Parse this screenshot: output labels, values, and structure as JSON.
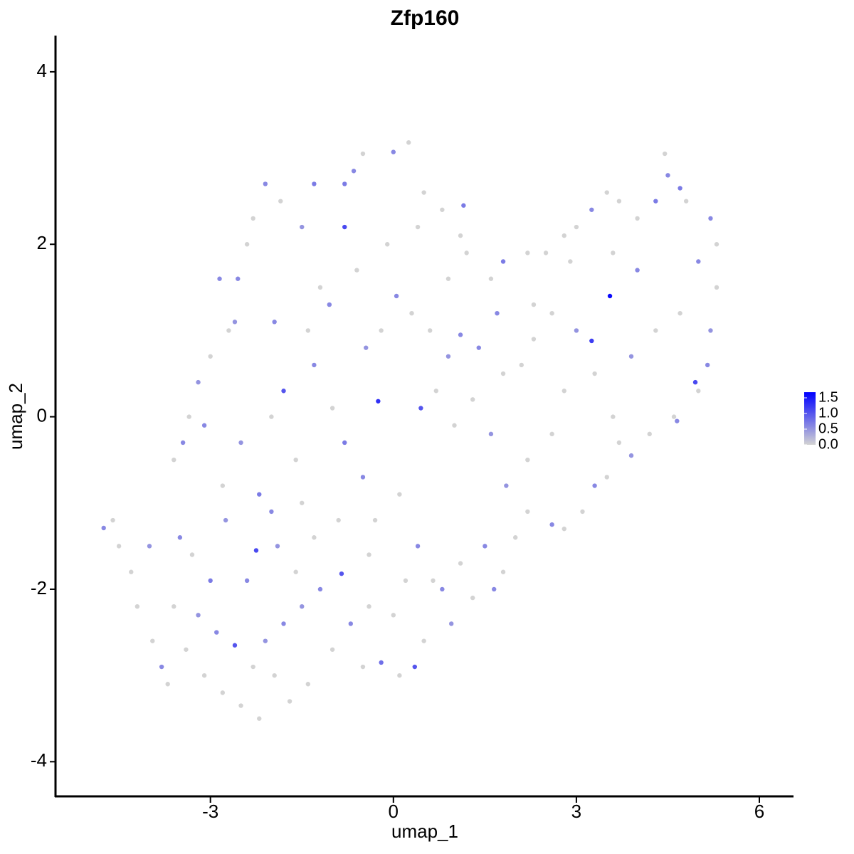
{
  "chart_data": {
    "type": "scatter",
    "title": "Zfp160",
    "x_label": "umap_1",
    "y_label": "umap_2",
    "xlim": [
      -5.54,
      6.56
    ],
    "ylim": [
      -4.41,
      4.42
    ],
    "xticks": [
      -3,
      0,
      3,
      6
    ],
    "yticks": [
      -4,
      -2,
      0,
      2,
      4
    ],
    "colorbar": {
      "range": [
        0,
        1.68
      ],
      "low": "#d3d3d3",
      "high": "#0000ff",
      "ticks": [
        {
          "value": 0,
          "label": "0.0"
        },
        {
          "value": 0.5,
          "label": "0.5"
        },
        {
          "value": 1,
          "label": "1.0"
        },
        {
          "value": 1.5,
          "label": "1.5"
        }
      ]
    },
    "x": [
      -4.75,
      -4.6,
      -4.5,
      -4.3,
      -4.2,
      -4.0,
      -3.95,
      -3.8,
      -3.7,
      -3.6,
      -3.5,
      -3.4,
      -3.3,
      -3.2,
      -3.1,
      -3.0,
      -2.9,
      -2.8,
      -2.75,
      -2.6,
      -2.5,
      -2.4,
      -2.3,
      -2.25,
      -2.2,
      -2.1,
      -2.0,
      -1.95,
      -1.8,
      -1.7,
      -1.6,
      -1.5,
      -1.4,
      -1.3,
      -1.2,
      -1.0,
      -0.85,
      -0.7,
      -0.5,
      -0.4,
      -0.2,
      0.0,
      0.1,
      0.35,
      0.5,
      0.65,
      0.8,
      0.95,
      1.1,
      1.3,
      1.5,
      1.65,
      1.8,
      2.0,
      2.2,
      2.6,
      2.8,
      3.1,
      3.3,
      3.5,
      3.7,
      3.9,
      4.2,
      4.6,
      4.65,
      5.0,
      4.95,
      5.15,
      5.2,
      5.3,
      5.0,
      5.3,
      5.2,
      4.8,
      4.7,
      4.5,
      4.45,
      4.3,
      4.0,
      3.7,
      3.5,
      3.25,
      3.0,
      2.8,
      2.9,
      2.5,
      2.2,
      1.8,
      1.6,
      1.7,
      3.55,
      3.25,
      3.0,
      2.6,
      2.3,
      2.1,
      1.8,
      1.4,
      1.1,
      0.9,
      0.6,
      0.3,
      0.05,
      -0.2,
      -0.45,
      -0.25,
      0.45,
      0.7,
      1.0,
      1.3,
      1.6,
      1.85,
      2.2,
      2.6,
      2.8,
      3.3,
      3.6,
      3.9,
      4.3,
      4.7,
      4.0,
      3.6,
      2.3,
      -0.8,
      -0.8,
      -0.65,
      -1.3,
      -1.5,
      -1.85,
      -2.1,
      -2.3,
      -2.55,
      -2.7,
      -2.85,
      -3.0,
      -3.2,
      -3.35,
      -3.45,
      -3.6,
      -3.1,
      -2.8,
      -2.5,
      -2.2,
      -2.0,
      -1.8,
      -1.6,
      -1.3,
      -1.0,
      -0.8,
      -0.5,
      -0.3,
      0.1,
      0.4,
      0.2,
      -0.4,
      -0.9,
      -1.5,
      -1.9,
      -1.2,
      -0.6,
      -0.1,
      0.4,
      0.8,
      1.15,
      1.2,
      0.9,
      0.0,
      0.25,
      -0.5,
      1.1,
      0.5,
      -2.4,
      -2.6,
      -1.95,
      -1.4,
      -1.05
    ],
    "y": [
      -1.29,
      -1.2,
      -1.5,
      -1.8,
      -2.2,
      -1.5,
      -2.6,
      -2.9,
      -3.1,
      -2.2,
      -1.4,
      -2.7,
      -1.6,
      -2.3,
      -3.0,
      -1.9,
      -2.5,
      -3.2,
      -1.2,
      -2.65,
      -3.35,
      -1.9,
      -2.9,
      -1.55,
      -3.5,
      -2.6,
      -1.1,
      -3.0,
      -2.4,
      -3.3,
      -1.8,
      -2.2,
      -3.1,
      -1.4,
      -2.0,
      -2.7,
      -1.82,
      -2.4,
      -2.9,
      -2.2,
      -2.85,
      -2.3,
      -3.0,
      -2.9,
      -2.6,
      -1.9,
      -2.0,
      -2.4,
      -1.7,
      -2.1,
      -1.5,
      -2.0,
      -1.8,
      -1.4,
      -1.1,
      -1.25,
      -1.3,
      -1.1,
      -0.8,
      -0.7,
      -0.3,
      -0.45,
      -0.2,
      0.0,
      -0.05,
      0.3,
      0.4,
      0.6,
      1.0,
      1.5,
      1.8,
      2.0,
      2.3,
      2.5,
      2.65,
      2.8,
      3.05,
      2.5,
      2.3,
      2.5,
      2.6,
      2.4,
      2.2,
      2.1,
      1.8,
      1.9,
      1.9,
      1.8,
      1.6,
      1.2,
      1.4,
      0.88,
      1.0,
      1.2,
      0.9,
      0.6,
      0.5,
      0.8,
      0.95,
      0.7,
      1.0,
      1.2,
      1.4,
      1.0,
      0.8,
      0.18,
      0.1,
      0.3,
      -0.1,
      0.2,
      -0.2,
      -0.8,
      -0.5,
      -0.2,
      0.3,
      0.5,
      0.0,
      0.7,
      1.0,
      1.2,
      1.7,
      1.9,
      1.3,
      2.2,
      2.7,
      2.85,
      2.7,
      2.2,
      2.5,
      2.7,
      2.3,
      1.6,
      1.0,
      1.6,
      0.7,
      0.4,
      0.0,
      -0.3,
      -0.5,
      -0.1,
      -0.8,
      -0.3,
      -0.9,
      0.0,
      0.3,
      -0.5,
      0.6,
      0.1,
      -0.3,
      -0.7,
      -1.2,
      -0.9,
      -1.5,
      -1.9,
      -1.6,
      -1.2,
      -1.0,
      -1.5,
      1.5,
      1.7,
      2.0,
      2.2,
      2.4,
      2.45,
      1.9,
      1.6,
      3.07,
      3.18,
      3.05,
      2.1,
      2.6,
      2.0,
      1.1,
      1.1,
      1.0,
      1.3
    ],
    "values": [
      0.6,
      0,
      0,
      0,
      0,
      0.5,
      0,
      0.6,
      0,
      0,
      0.6,
      0,
      0,
      0.5,
      0,
      0.7,
      0.6,
      0,
      0.5,
      1.0,
      0,
      0.6,
      0,
      1.1,
      0,
      0.5,
      0.6,
      0,
      0.6,
      0,
      0,
      0.5,
      0,
      0,
      0.6,
      0,
      1.0,
      0.6,
      0,
      0,
      0.8,
      0,
      0,
      1.0,
      0,
      0,
      0.6,
      0.5,
      0,
      0,
      0.6,
      0.6,
      0,
      0,
      0,
      0.6,
      0,
      0,
      0.6,
      0,
      0,
      0.5,
      0,
      0,
      0.6,
      0,
      1.1,
      0.6,
      0.5,
      0,
      0.6,
      0,
      0.6,
      0,
      0.7,
      0.6,
      0,
      0.7,
      0,
      0,
      0,
      0.6,
      0,
      0,
      0,
      0,
      0,
      0.7,
      0,
      0.6,
      1.6,
      1.2,
      0.5,
      0,
      0,
      0,
      0,
      0.6,
      0.6,
      0.5,
      0,
      0,
      0.6,
      0,
      0.5,
      1.3,
      1.0,
      0,
      0,
      0,
      0.5,
      0.5,
      0,
      0,
      0,
      0,
      0,
      0.5,
      0,
      0,
      0.6,
      0,
      0,
      1.1,
      0.7,
      0.6,
      0.7,
      0.5,
      0,
      0.6,
      0,
      0.6,
      0,
      0.6,
      0,
      0.5,
      0,
      0.6,
      0,
      0.6,
      0,
      0.5,
      0.7,
      0,
      1.0,
      0,
      0.6,
      0,
      0.7,
      0.6,
      0,
      0,
      0.6,
      0,
      0,
      0,
      0,
      0.5,
      0,
      0,
      0,
      0,
      0,
      0.7,
      0,
      0,
      0.6,
      0,
      0,
      0,
      0,
      0,
      0.5,
      0.6,
      0,
      0.6
    ]
  }
}
